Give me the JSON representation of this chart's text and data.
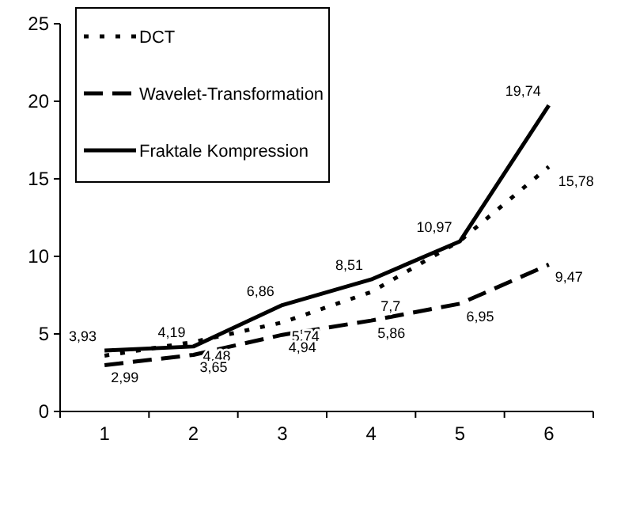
{
  "chart_data": {
    "type": "line",
    "categories": [
      "1",
      "2",
      "3",
      "4",
      "5",
      "6"
    ],
    "ylim": [
      0,
      25
    ],
    "yticks": [
      0,
      5,
      10,
      15,
      20,
      25
    ],
    "grid": false,
    "legend": "top left",
    "marker": "none",
    "series": [
      {
        "name": "DCT",
        "color": "#000000",
        "line_style": "dotted",
        "values": [
          3.6,
          4.48,
          5.74,
          7.7,
          11,
          15.78
        ],
        "value_labels": [
          null,
          "4,48",
          "5,74",
          "7,7",
          null,
          "15,78"
        ]
      },
      {
        "name": "Wavelet-Transformation",
        "color": "#000000",
        "line_style": "dashed",
        "values": [
          2.99,
          3.65,
          4.94,
          5.86,
          6.95,
          9.47
        ],
        "value_labels": [
          "2,99",
          "3,65",
          "4,94",
          "5,86",
          "6,95",
          "9,47"
        ]
      },
      {
        "name": "Fraktale Kompression",
        "color": "#000000",
        "line_style": "solid",
        "values": [
          3.93,
          4.19,
          6.86,
          8.51,
          10.97,
          19.74
        ],
        "value_labels": [
          "3,93",
          "4,19",
          "6,86",
          "8,51",
          "10,97",
          "19,74"
        ]
      }
    ]
  }
}
